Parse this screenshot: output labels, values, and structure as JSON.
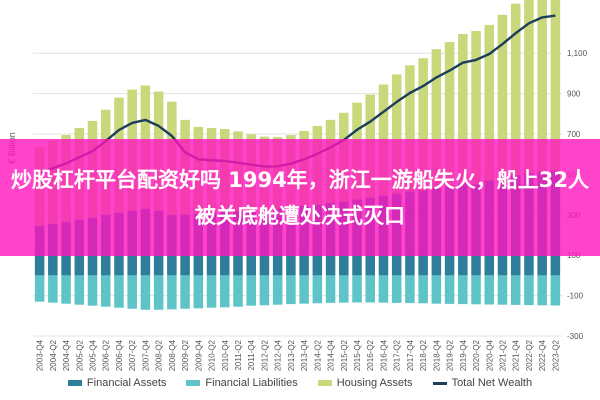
{
  "banner": {
    "text": "炒股杠杆平台配资好吗 1994年，浙江一游船失火，船上32人被关底舱遭处决式灭口"
  },
  "chart_data": {
    "type": "bar",
    "title": "",
    "ylabel": "€ Billion",
    "xlabel": "",
    "ylim": [
      -300,
      1200
    ],
    "yticks": [
      -300,
      -100,
      100,
      300,
      500,
      700,
      900,
      1100
    ],
    "ytick_labels": [
      "-300",
      "-100",
      "100",
      "300",
      "500",
      "700",
      "900",
      "1,100"
    ],
    "grid": true,
    "legend_position": "bottom",
    "categories": [
      "2003-Q4",
      "2004-Q2",
      "2004-Q4",
      "2005-Q2",
      "2005-Q4",
      "2006-Q2",
      "2006-Q4",
      "2007-Q2",
      "2007-Q4",
      "2008-Q2",
      "2008-Q4",
      "2009-Q2",
      "2009-Q4",
      "2010-Q2",
      "2010-Q4",
      "2011-Q2",
      "2011-Q4",
      "2012-Q2",
      "2012-Q4",
      "2013-Q2",
      "2013-Q4",
      "2014-Q2",
      "2014-Q4",
      "2015-Q2",
      "2015-Q4",
      "2016-Q2",
      "2016-Q4",
      "2017-Q2",
      "2017-Q4",
      "2018-Q2",
      "2018-Q4",
      "2019-Q2",
      "2019-Q4",
      "2020-Q2",
      "2020-Q4",
      "2021-Q2",
      "2021-Q4",
      "2022-Q2",
      "2022-Q4",
      "2023-Q2"
    ],
    "series": [
      {
        "name": "Financial Assets",
        "kind": "bar",
        "color": "#2e7d9a",
        "values": [
          245,
          255,
          265,
          275,
          285,
          300,
          310,
          320,
          330,
          320,
          300,
          300,
          305,
          310,
          315,
          318,
          318,
          322,
          330,
          335,
          345,
          350,
          360,
          365,
          375,
          385,
          395,
          405,
          415,
          420,
          430,
          440,
          455,
          450,
          470,
          485,
          495,
          505,
          515,
          520
        ]
      },
      {
        "name": "Financial Liabilities",
        "kind": "bar",
        "color": "#5fc4c7",
        "values": [
          -130,
          -135,
          -140,
          -145,
          -150,
          -155,
          -160,
          -165,
          -170,
          -170,
          -168,
          -165,
          -163,
          -160,
          -158,
          -155,
          -150,
          -148,
          -145,
          -142,
          -140,
          -138,
          -136,
          -135,
          -134,
          -134,
          -135,
          -136,
          -137,
          -138,
          -140,
          -141,
          -142,
          -143,
          -144,
          -145,
          -146,
          -147,
          -148,
          -149
        ]
      },
      {
        "name": "Housing Assets",
        "kind": "bar",
        "color": "#c9d87a",
        "values": [
          390,
          410,
          430,
          455,
          480,
          520,
          570,
          600,
          610,
          590,
          560,
          470,
          430,
          420,
          410,
          395,
          380,
          365,
          355,
          360,
          370,
          390,
          410,
          440,
          480,
          510,
          550,
          590,
          625,
          655,
          690,
          715,
          740,
          760,
          770,
          805,
          850,
          890,
          910,
          915
        ]
      },
      {
        "name": "Total Net Wealth",
        "kind": "line",
        "color": "#1b3f5a",
        "values": [
          505,
          530,
          555,
          585,
          615,
          665,
          720,
          755,
          770,
          740,
          690,
          610,
          575,
          570,
          567,
          558,
          548,
          539,
          540,
          553,
          575,
          602,
          634,
          670,
          721,
          761,
          810,
          859,
          903,
          937,
          980,
          1014,
          1053,
          1067,
          1096,
          1145,
          1199,
          1248,
          1277,
          1286
        ]
      }
    ]
  }
}
